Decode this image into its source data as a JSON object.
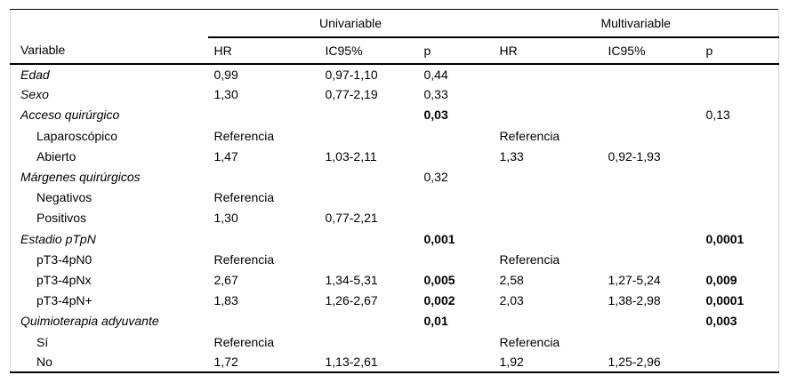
{
  "table": {
    "groups": [
      {
        "label": "Univariable"
      },
      {
        "label": "Multivariable"
      }
    ],
    "columns": [
      "Variable",
      "HR",
      "IC95%",
      "p",
      "HR",
      "IC95%",
      "p"
    ],
    "rows": [
      {
        "label": "Edad",
        "style": "main",
        "cells": [
          "0,99",
          "0,97-1,10",
          "0,44",
          "",
          "",
          ""
        ],
        "bold": []
      },
      {
        "label": "Sexo",
        "style": "main",
        "cells": [
          "1,30",
          "0,77-2,19",
          "0,33",
          "",
          "",
          ""
        ],
        "bold": []
      },
      {
        "label": "Acceso quirúrgico",
        "style": "main",
        "cells": [
          "",
          "",
          "0,03",
          "",
          "",
          "0,13"
        ],
        "bold": [
          2
        ]
      },
      {
        "label": "Laparoscópico",
        "style": "sub",
        "cells": [
          "Referencia",
          "",
          "",
          "Referencia",
          "",
          ""
        ],
        "bold": []
      },
      {
        "label": "Abierto",
        "style": "sub",
        "cells": [
          "1,47",
          "1,03-2,11",
          "",
          "1,33",
          "0,92-1,93",
          ""
        ],
        "bold": []
      },
      {
        "label": "Márgenes quirúrgicos",
        "style": "main",
        "cells": [
          "",
          "",
          "0,32",
          "",
          "",
          ""
        ],
        "bold": []
      },
      {
        "label": "Negativos",
        "style": "sub",
        "cells": [
          "Referencia",
          "",
          "",
          "",
          "",
          ""
        ],
        "bold": []
      },
      {
        "label": "Positivos",
        "style": "sub",
        "cells": [
          "1,30",
          "0,77-2,21",
          "",
          "",
          "",
          ""
        ],
        "bold": []
      },
      {
        "label": "Estadio pTpN",
        "style": "main",
        "cells": [
          "",
          "",
          "0,001",
          "",
          "",
          "0,0001"
        ],
        "bold": [
          2,
          5
        ]
      },
      {
        "label": "pT3-4pN0",
        "style": "sub",
        "cells": [
          "Referencia",
          "",
          "",
          "Referencia",
          "",
          ""
        ],
        "bold": []
      },
      {
        "label": "pT3-4pNx",
        "style": "sub",
        "cells": [
          "2,67",
          "1,34-5,31",
          "0,005",
          "2,58",
          "1,27-5,24",
          "0,009"
        ],
        "bold": [
          2,
          5
        ]
      },
      {
        "label": "pT3-4pN+",
        "style": "sub",
        "cells": [
          "1,83",
          "1,26-2,67",
          "0,002",
          "2,03",
          "1,38-2,98",
          "0,0001"
        ],
        "bold": [
          2,
          5
        ]
      },
      {
        "label": "Quimioterapia adyuvante",
        "style": "main",
        "cells": [
          "",
          "",
          "0,01",
          "",
          "",
          "0,003"
        ],
        "bold": [
          2,
          5
        ]
      },
      {
        "label": "Sí",
        "style": "sub",
        "cells": [
          "Referencia",
          "",
          "",
          "Referencia",
          "",
          ""
        ],
        "bold": []
      },
      {
        "label": "No",
        "style": "sub",
        "cells": [
          "1,72",
          "1,13-2,61",
          "",
          "1,92",
          "1,25-2,96",
          ""
        ],
        "bold": []
      }
    ],
    "colors": {
      "rule": "#000000",
      "side_border": "#d8d8d8",
      "text": "#000000"
    }
  }
}
